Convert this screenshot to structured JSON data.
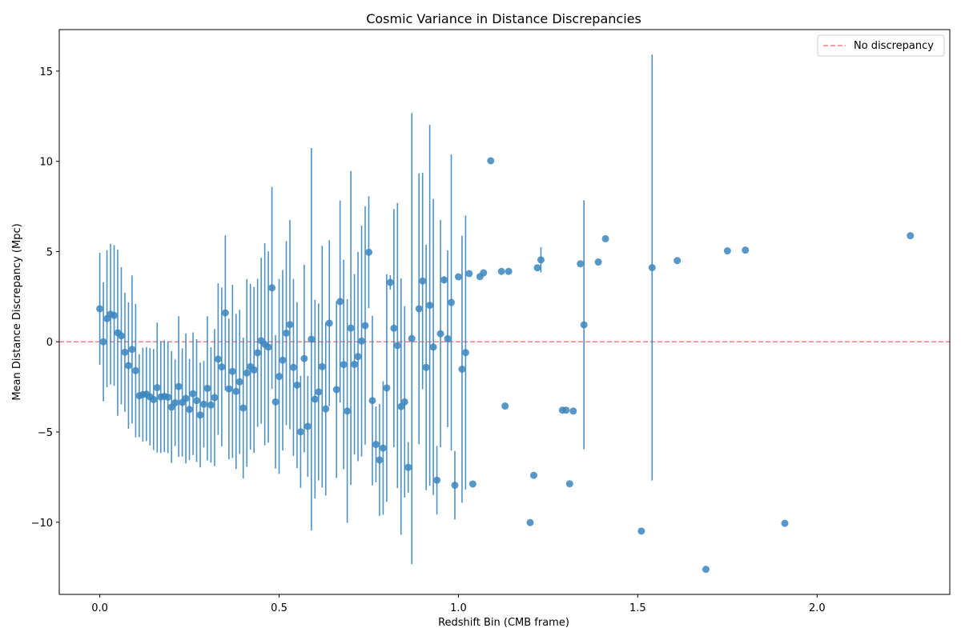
{
  "chart_data": {
    "type": "scatter",
    "title": "Cosmic Variance in Distance Discrepancies",
    "xlabel": "Redshift Bin (CMB frame)",
    "ylabel": "Mean Distance Discrepancy (Mpc)",
    "xlim": [
      -0.113,
      2.37
    ],
    "ylim": [
      -14.0,
      17.3
    ],
    "xticks": [
      0.0,
      0.5,
      1.0,
      1.5,
      2.0
    ],
    "xtick_labels": [
      "0.0",
      "0.5",
      "1.0",
      "1.5",
      "2.0"
    ],
    "yticks": [
      -10,
      -5,
      0,
      5,
      10,
      15
    ],
    "ytick_labels": [
      "−10",
      "−5",
      "0",
      "5",
      "10",
      "15"
    ],
    "grid": false,
    "legend_position": "top-right",
    "reference_line": {
      "y": 0,
      "label": "No discrepancy",
      "color": "#f08080",
      "style": "dashed"
    },
    "series": [
      {
        "color": "#3b86bf",
        "points": [
          {
            "x": 0.0,
            "y": 1.83,
            "err": 3.1
          },
          {
            "x": 0.01,
            "y": 0.0,
            "err": 3.3
          },
          {
            "x": 0.02,
            "y": 1.28,
            "err": 3.8
          },
          {
            "x": 0.03,
            "y": 1.53,
            "err": 3.9
          },
          {
            "x": 0.04,
            "y": 1.46,
            "err": 3.9
          },
          {
            "x": 0.05,
            "y": 0.5,
            "err": 4.6
          },
          {
            "x": 0.06,
            "y": 0.33,
            "err": 3.8
          },
          {
            "x": 0.07,
            "y": -0.58,
            "err": 3.3
          },
          {
            "x": 0.08,
            "y": -1.32,
            "err": 3.5
          },
          {
            "x": 0.09,
            "y": -0.42,
            "err": 4.1
          },
          {
            "x": 0.1,
            "y": -1.6,
            "err": 3.7
          },
          {
            "x": 0.11,
            "y": -2.99,
            "err": 2.3
          },
          {
            "x": 0.12,
            "y": -2.93,
            "err": 2.6
          },
          {
            "x": 0.13,
            "y": -2.9,
            "err": 2.6
          },
          {
            "x": 0.14,
            "y": -3.05,
            "err": 2.7
          },
          {
            "x": 0.15,
            "y": -3.2,
            "err": 2.8
          },
          {
            "x": 0.16,
            "y": -2.54,
            "err": 3.6
          },
          {
            "x": 0.17,
            "y": -3.06,
            "err": 3.1
          },
          {
            "x": 0.18,
            "y": -3.02,
            "err": 3.1
          },
          {
            "x": 0.19,
            "y": -3.07,
            "err": 3.1
          },
          {
            "x": 0.2,
            "y": -3.62,
            "err": 3.1
          },
          {
            "x": 0.21,
            "y": -3.38,
            "err": 2.4
          },
          {
            "x": 0.22,
            "y": -2.48,
            "err": 3.9
          },
          {
            "x": 0.23,
            "y": -3.36,
            "err": 3.0
          },
          {
            "x": 0.24,
            "y": -3.14,
            "err": 3.6
          },
          {
            "x": 0.25,
            "y": -3.75,
            "err": 2.8
          },
          {
            "x": 0.26,
            "y": -2.88,
            "err": 3.4
          },
          {
            "x": 0.27,
            "y": -3.26,
            "err": 3.4
          },
          {
            "x": 0.28,
            "y": -4.06,
            "err": 2.9
          },
          {
            "x": 0.29,
            "y": -3.46,
            "err": 2.4
          },
          {
            "x": 0.3,
            "y": -2.58,
            "err": 4.0
          },
          {
            "x": 0.31,
            "y": -3.5,
            "err": 3.2
          },
          {
            "x": 0.32,
            "y": -3.09,
            "err": 3.8
          },
          {
            "x": 0.33,
            "y": -0.96,
            "err": 4.2
          },
          {
            "x": 0.34,
            "y": -1.39,
            "err": 4.4
          },
          {
            "x": 0.35,
            "y": 1.6,
            "err": 4.3
          },
          {
            "x": 0.36,
            "y": -2.61,
            "err": 3.9
          },
          {
            "x": 0.37,
            "y": -1.64,
            "err": 4.8
          },
          {
            "x": 0.38,
            "y": -2.75,
            "err": 4.3
          },
          {
            "x": 0.39,
            "y": -2.22,
            "err": 4.0
          },
          {
            "x": 0.4,
            "y": -3.67,
            "err": 3.9
          },
          {
            "x": 0.41,
            "y": -1.73,
            "err": 5.2
          },
          {
            "x": 0.42,
            "y": -1.38,
            "err": 4.6
          },
          {
            "x": 0.43,
            "y": -1.56,
            "err": 4.6
          },
          {
            "x": 0.44,
            "y": -0.61,
            "err": 4.1
          },
          {
            "x": 0.45,
            "y": 0.06,
            "err": 4.6
          },
          {
            "x": 0.46,
            "y": -0.14,
            "err": 5.6
          },
          {
            "x": 0.47,
            "y": -0.29,
            "err": 5.3
          },
          {
            "x": 0.48,
            "y": 2.99,
            "err": 5.6
          },
          {
            "x": 0.49,
            "y": -3.33,
            "err": 3.7
          },
          {
            "x": 0.5,
            "y": -1.92,
            "err": 5.4
          },
          {
            "x": 0.51,
            "y": -1.02,
            "err": 5.0
          },
          {
            "x": 0.52,
            "y": 0.48,
            "err": 5.1
          },
          {
            "x": 0.53,
            "y": 0.95,
            "err": 5.8
          },
          {
            "x": 0.54,
            "y": -1.42,
            "err": 4.9
          },
          {
            "x": 0.55,
            "y": -2.4,
            "err": 4.6
          },
          {
            "x": 0.56,
            "y": -4.99,
            "err": 3.1
          },
          {
            "x": 0.57,
            "y": -0.93,
            "err": 5.2
          },
          {
            "x": 0.58,
            "y": -4.69,
            "err": 2.8
          },
          {
            "x": 0.59,
            "y": 0.14,
            "err": 10.6
          },
          {
            "x": 0.6,
            "y": -3.18,
            "err": 5.5
          },
          {
            "x": 0.61,
            "y": -2.78,
            "err": 4.9
          },
          {
            "x": 0.62,
            "y": -1.38,
            "err": 6.7
          },
          {
            "x": 0.63,
            "y": -3.72,
            "err": 4.8
          },
          {
            "x": 0.64,
            "y": 1.03,
            "err": 4.6
          },
          {
            "x": 0.66,
            "y": -2.65,
            "err": 4.9
          },
          {
            "x": 0.67,
            "y": 2.23,
            "err": 5.6
          },
          {
            "x": 0.68,
            "y": -1.26,
            "err": 5.8
          },
          {
            "x": 0.69,
            "y": -3.84,
            "err": 6.2
          },
          {
            "x": 0.7,
            "y": 0.76,
            "err": 8.7
          },
          {
            "x": 0.71,
            "y": -1.25,
            "err": 5.0
          },
          {
            "x": 0.72,
            "y": -0.82,
            "err": 5.8
          },
          {
            "x": 0.73,
            "y": 0.04,
            "err": 6.4
          },
          {
            "x": 0.74,
            "y": 0.9,
            "err": 6.6
          },
          {
            "x": 0.75,
            "y": 4.96,
            "err": 3.1
          },
          {
            "x": 0.76,
            "y": -3.26,
            "err": 4.7
          },
          {
            "x": 0.77,
            "y": -5.69,
            "err": 2.1
          },
          {
            "x": 0.78,
            "y": -6.55,
            "err": 3.1
          },
          {
            "x": 0.79,
            "y": -5.89,
            "err": 3.7
          },
          {
            "x": 0.8,
            "y": -2.56,
            "err": 6.3
          },
          {
            "x": 0.81,
            "y": 3.29,
            "err": 0.4
          },
          {
            "x": 0.82,
            "y": 0.75,
            "err": 6.6
          },
          {
            "x": 0.83,
            "y": -0.21,
            "err": 7.9
          },
          {
            "x": 0.84,
            "y": -3.59,
            "err": 7.1
          },
          {
            "x": 0.85,
            "y": -3.33,
            "err": 5.3
          },
          {
            "x": 0.86,
            "y": -6.96,
            "err": 1.4
          },
          {
            "x": 0.87,
            "y": 0.18,
            "err": 12.5
          },
          {
            "x": 0.89,
            "y": 1.83,
            "err": 7.5
          },
          {
            "x": 0.9,
            "y": 3.37,
            "err": 6.0
          },
          {
            "x": 0.91,
            "y": -1.42,
            "err": 6.8
          },
          {
            "x": 0.92,
            "y": 2.02,
            "err": 10.0
          },
          {
            "x": 0.93,
            "y": -0.29,
            "err": 8.2
          },
          {
            "x": 0.94,
            "y": -7.67,
            "err": 1.9
          },
          {
            "x": 0.95,
            "y": 0.45,
            "err": 6.3
          },
          {
            "x": 0.96,
            "y": 3.43,
            "err": 0.2
          },
          {
            "x": 0.97,
            "y": 0.17,
            "err": 4.9
          },
          {
            "x": 0.98,
            "y": 2.18,
            "err": 8.2
          },
          {
            "x": 0.99,
            "y": -7.95,
            "err": 1.9
          },
          {
            "x": 1.0,
            "y": 3.6,
            "err": 0
          },
          {
            "x": 1.01,
            "y": -1.52,
            "err": 7.4
          },
          {
            "x": 1.02,
            "y": -0.6,
            "err": 7.6
          },
          {
            "x": 1.03,
            "y": 3.78,
            "err": 0
          },
          {
            "x": 1.04,
            "y": -7.88,
            "err": 0
          },
          {
            "x": 1.06,
            "y": 3.61,
            "err": 0
          },
          {
            "x": 1.07,
            "y": 3.82,
            "err": 0
          },
          {
            "x": 1.09,
            "y": 10.03,
            "err": 0
          },
          {
            "x": 1.12,
            "y": 3.9,
            "err": 0
          },
          {
            "x": 1.13,
            "y": -3.56,
            "err": 0
          },
          {
            "x": 1.14,
            "y": 3.9,
            "err": 0
          },
          {
            "x": 1.2,
            "y": -10.02,
            "err": 0
          },
          {
            "x": 1.21,
            "y": -7.4,
            "err": 0
          },
          {
            "x": 1.22,
            "y": 4.1,
            "err": 0
          },
          {
            "x": 1.23,
            "y": 4.54,
            "err": 0.7
          },
          {
            "x": 1.29,
            "y": -3.79,
            "err": 0
          },
          {
            "x": 1.3,
            "y": -3.79,
            "err": 0
          },
          {
            "x": 1.31,
            "y": -7.87,
            "err": 0
          },
          {
            "x": 1.32,
            "y": -3.84,
            "err": 0
          },
          {
            "x": 1.34,
            "y": 4.32,
            "err": 0
          },
          {
            "x": 1.35,
            "y": 0.94,
            "err": 6.9
          },
          {
            "x": 1.39,
            "y": 4.42,
            "err": 0
          },
          {
            "x": 1.41,
            "y": 5.71,
            "err": 0
          },
          {
            "x": 1.51,
            "y": -10.49,
            "err": 0
          },
          {
            "x": 1.54,
            "y": 4.11,
            "err": 11.8
          },
          {
            "x": 1.61,
            "y": 4.5,
            "err": 0
          },
          {
            "x": 1.69,
            "y": -12.61,
            "err": 0
          },
          {
            "x": 1.75,
            "y": 5.04,
            "err": 0
          },
          {
            "x": 1.8,
            "y": 5.08,
            "err": 0
          },
          {
            "x": 1.91,
            "y": -10.06,
            "err": 0
          },
          {
            "x": 2.26,
            "y": 5.88,
            "err": 0
          }
        ]
      }
    ]
  }
}
